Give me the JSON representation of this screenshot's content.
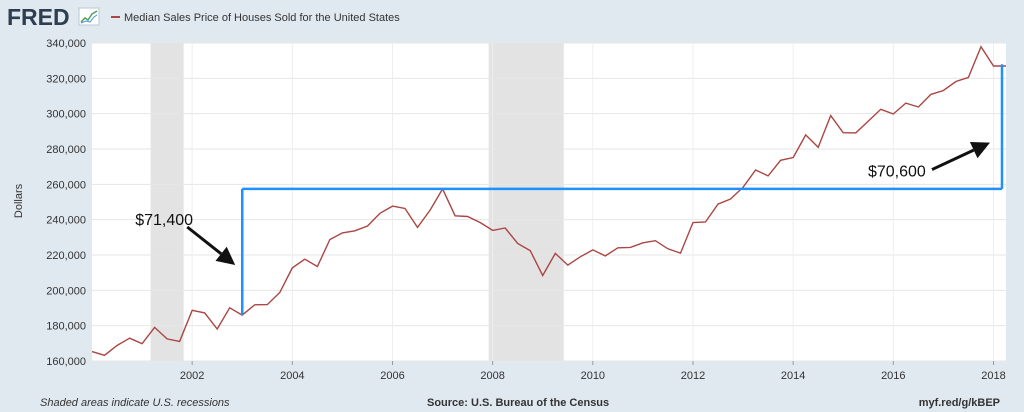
{
  "brand": {
    "logo_text": "FRED"
  },
  "legend": {
    "label": "Median Sales Price of Houses Sold for the United States"
  },
  "footer": {
    "note": "Shaded areas indicate U.S. recessions",
    "source": "Source: U.S. Bureau of the Census",
    "url": "myf.red/g/kBEP"
  },
  "colors": {
    "series": "#aa4643",
    "overlay": "#1e90ff",
    "recession": "#e3e3e3",
    "background": "#e1e9f0",
    "plot": "#ffffff"
  },
  "chart_data": {
    "type": "line",
    "title": "Median Sales Price of Houses Sold for the United States",
    "xlabel": "",
    "ylabel": "Dollars",
    "xlim": [
      2000.0,
      2018.25
    ],
    "ylim": [
      160000,
      340000
    ],
    "yticks": [
      160000,
      180000,
      200000,
      220000,
      240000,
      260000,
      280000,
      300000,
      320000,
      340000
    ],
    "ytick_labels": [
      "160,000",
      "180,000",
      "200,000",
      "220,000",
      "240,000",
      "260,000",
      "280,000",
      "300,000",
      "320,000",
      "340,000"
    ],
    "xticks": [
      2002,
      2004,
      2006,
      2008,
      2010,
      2012,
      2014,
      2016,
      2018
    ],
    "xtick_labels": [
      "2002",
      "2004",
      "2006",
      "2008",
      "2010",
      "2012",
      "2014",
      "2016",
      "2018"
    ],
    "grid": true,
    "recessions": [
      [
        2001.17,
        2001.83
      ],
      [
        2007.92,
        2009.42
      ]
    ],
    "series": [
      {
        "name": "Median Sales Price of Houses Sold for the United States",
        "x": [
          2000.0,
          2000.25,
          2000.5,
          2000.75,
          2001.0,
          2001.25,
          2001.5,
          2001.75,
          2002.0,
          2002.25,
          2002.5,
          2002.75,
          2003.0,
          2003.25,
          2003.5,
          2003.75,
          2004.0,
          2004.25,
          2004.5,
          2004.75,
          2005.0,
          2005.25,
          2005.5,
          2005.75,
          2006.0,
          2006.25,
          2006.5,
          2006.75,
          2007.0,
          2007.25,
          2007.5,
          2007.75,
          2008.0,
          2008.25,
          2008.5,
          2008.75,
          2009.0,
          2009.25,
          2009.5,
          2009.75,
          2010.0,
          2010.25,
          2010.5,
          2010.75,
          2011.0,
          2011.25,
          2011.5,
          2011.75,
          2012.0,
          2012.25,
          2012.5,
          2012.75,
          2013.0,
          2013.25,
          2013.5,
          2013.75,
          2014.0,
          2014.25,
          2014.5,
          2014.75,
          2015.0,
          2015.25,
          2015.5,
          2015.75,
          2016.0,
          2016.25,
          2016.5,
          2016.75,
          2017.0,
          2017.25,
          2017.5,
          2017.75,
          2018.0,
          2018.25
        ],
        "values": [
          165300,
          163200,
          168800,
          172900,
          169800,
          179000,
          172500,
          171100,
          188700,
          187200,
          178100,
          190100,
          186000,
          191800,
          191900,
          198800,
          212700,
          217600,
          213500,
          228800,
          232500,
          233700,
          236400,
          243600,
          247700,
          246300,
          235600,
          245400,
          257400,
          242200,
          241800,
          238400,
          233900,
          235300,
          226500,
          222500,
          208400,
          220900,
          214300,
          219000,
          222900,
          219500,
          224100,
          224300,
          226900,
          228100,
          223500,
          221100,
          238400,
          238700,
          248800,
          251700,
          258400,
          268100,
          264800,
          273600,
          275200,
          288000,
          281000,
          298900,
          289200,
          289100,
          295800,
          302500,
          299800,
          306000,
          303800,
          310900,
          313100,
          318200,
          320500,
          337900,
          327000,
          327000
        ]
      }
    ],
    "annotations": [
      {
        "text": "$71,400",
        "from": {
          "x": 2003.0,
          "y": 186000
        },
        "to": {
          "x": 2003.0,
          "y": 257400
        }
      },
      {
        "text": "$70,600",
        "from": {
          "x": 2018.17,
          "y": 257400
        },
        "to": {
          "x": 2018.17,
          "y": 328000
        }
      }
    ],
    "reference_line": {
      "x0": 2003.0,
      "x1": 2018.17,
      "y": 257400
    }
  }
}
